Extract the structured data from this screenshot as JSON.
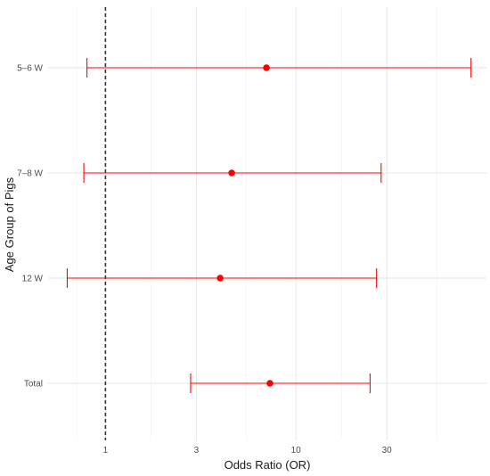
{
  "chart_data": {
    "type": "forest",
    "xlabel": "Odds Ratio (OR)",
    "ylabel": "Age Group of Pigs",
    "x_scale": "log10",
    "xlim": [
      0.5,
      100
    ],
    "x_ticks": [
      1,
      3,
      10,
      30
    ],
    "x_tick_labels": [
      "1",
      "3",
      "10",
      "30"
    ],
    "reference_line": 1,
    "grid": true,
    "categories": [
      "5–6 W",
      "7–8 W",
      "12 W",
      "Total"
    ],
    "estimate": [
      7.0,
      4.6,
      4.0,
      7.3
    ],
    "lower": [
      0.8,
      0.77,
      0.63,
      2.8
    ],
    "upper": [
      83,
      28,
      26.5,
      24.5
    ],
    "color": "#ff0000"
  }
}
